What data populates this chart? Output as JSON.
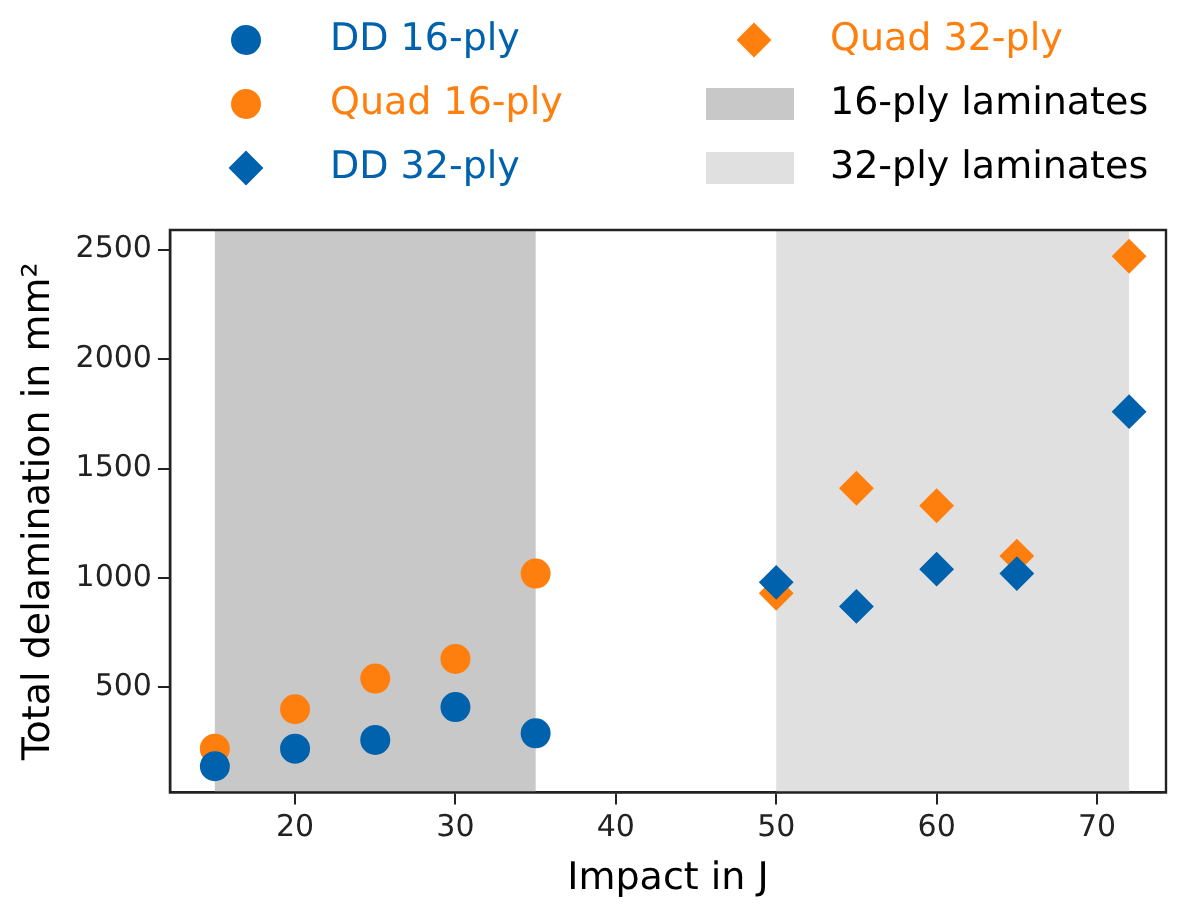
{
  "chart_data": {
    "type": "scatter",
    "xlabel": "Impact in J",
    "ylabel": "Total delamination in mm²",
    "xlim": [
      12.2,
      74.3
    ],
    "xticks": [
      20,
      30,
      40,
      50,
      60,
      70
    ],
    "ylim": [
      20,
      2590
    ],
    "yticks": [
      500,
      1000,
      1500,
      2000,
      2500
    ],
    "grid": false,
    "legend": "top",
    "series": [
      {
        "name": "DD 16-ply",
        "color": "#0062ad",
        "marker": "circle",
        "x": [
          15,
          20,
          25,
          30,
          35
        ],
        "values": [
          140,
          220,
          260,
          410,
          290
        ]
      },
      {
        "name": "Quad 16-ply",
        "color": "#ff7f0e",
        "marker": "circle",
        "x": [
          15,
          20,
          25,
          30,
          35
        ],
        "values": [
          220,
          400,
          540,
          630,
          1020
        ]
      },
      {
        "name": "DD 32-ply",
        "color": "#0062ad",
        "marker": "diamond",
        "x": [
          50,
          55,
          60,
          65,
          72
        ],
        "values": [
          980,
          870,
          1040,
          1020,
          1760
        ]
      },
      {
        "name": "Quad 32-ply",
        "color": "#ff7f0e",
        "marker": "diamond",
        "x": [
          50,
          55,
          60,
          65,
          72
        ],
        "values": [
          930,
          1410,
          1330,
          1100,
          2470
        ]
      }
    ],
    "bands": [
      {
        "axis": "x",
        "from": 15,
        "to": 35,
        "label": "16-ply laminates",
        "color": "#c8c8c8"
      },
      {
        "axis": "x",
        "from": 50,
        "to": 72,
        "label": "32-ply laminates",
        "color": "#e0e0e0"
      }
    ]
  }
}
